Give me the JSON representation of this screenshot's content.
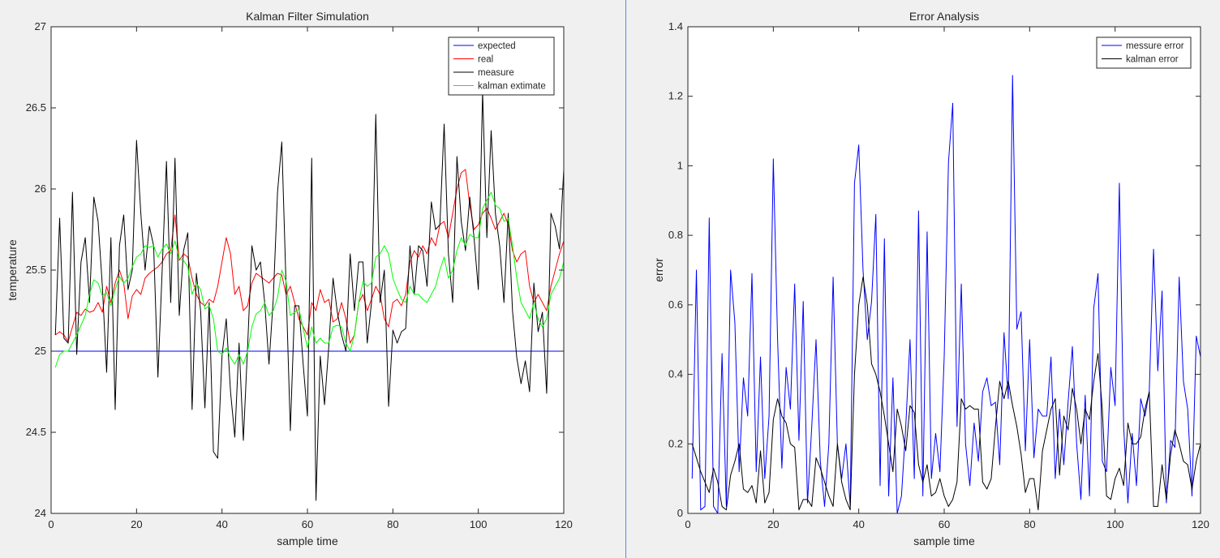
{
  "divider_color": "#4a90e2",
  "chart_data": [
    {
      "type": "line",
      "title": "Kalman Filter Simulation",
      "xlabel": "sample time",
      "ylabel": "temperature",
      "xlim": [
        0,
        120
      ],
      "ylim": [
        24,
        27
      ],
      "xticks": [
        0,
        20,
        40,
        60,
        80,
        100,
        120
      ],
      "yticks": [
        24,
        24.5,
        25,
        25.5,
        26,
        26.5,
        27
      ],
      "grid": false,
      "legend_position": "top-right",
      "series": [
        {
          "name": "expected",
          "color": "#0000ff",
          "x": [
            1,
            120
          ],
          "y": [
            25.0,
            25.0
          ]
        },
        {
          "name": "real",
          "color": "#ff0000",
          "y": [
            25.1,
            25.12,
            25.1,
            25.06,
            25.15,
            25.24,
            25.22,
            25.26,
            25.24,
            25.25,
            25.3,
            25.24,
            25.4,
            25.3,
            25.42,
            25.5,
            25.42,
            25.2,
            25.34,
            25.38,
            25.35,
            25.45,
            25.48,
            25.5,
            25.52,
            25.55,
            25.6,
            25.62,
            25.84,
            25.56,
            25.6,
            25.58,
            25.45,
            25.35,
            25.3,
            25.28,
            25.32,
            25.3,
            25.4,
            25.55,
            25.7,
            25.6,
            25.35,
            25.4,
            25.25,
            25.28,
            25.42,
            25.48,
            25.46,
            25.44,
            25.42,
            25.45,
            25.48,
            25.47,
            25.35,
            25.4,
            25.3,
            25.2,
            25.15,
            25.1,
            25.3,
            25.25,
            25.38,
            25.3,
            25.32,
            25.18,
            25.2,
            25.3,
            25.2,
            25.05,
            25.1,
            25.3,
            25.35,
            25.25,
            25.32,
            25.4,
            25.35,
            25.2,
            25.15,
            25.3,
            25.32,
            25.28,
            25.35,
            25.55,
            25.62,
            25.58,
            25.65,
            25.6,
            25.7,
            25.65,
            25.78,
            25.8,
            25.7,
            25.85,
            26.0,
            26.1,
            26.12,
            25.9,
            25.75,
            25.78,
            25.85,
            25.88,
            25.82,
            25.75,
            25.8,
            25.85,
            25.78,
            25.62,
            25.55,
            25.6,
            25.62,
            25.4,
            25.3,
            25.35,
            25.3,
            25.25,
            25.4,
            25.5,
            25.6,
            25.68
          ]
        },
        {
          "name": "measure",
          "color": "#000000",
          "y": [
            25.1,
            25.82,
            25.08,
            25.05,
            25.98,
            24.98,
            25.55,
            25.7,
            25.3,
            25.95,
            25.8,
            25.4,
            24.87,
            25.7,
            24.64,
            25.65,
            25.84,
            25.38,
            25.5,
            26.3,
            25.85,
            25.5,
            25.77,
            25.65,
            24.84,
            25.5,
            26.17,
            25.3,
            26.19,
            25.22,
            25.62,
            25.73,
            24.64,
            25.48,
            25.25,
            24.65,
            25.3,
            24.38,
            24.34,
            24.97,
            25.2,
            24.75,
            24.47,
            25.05,
            24.45,
            25.03,
            25.65,
            25.5,
            25.55,
            25.3,
            24.92,
            25.32,
            25.98,
            26.29,
            25.4,
            24.51,
            25.28,
            25.28,
            24.92,
            24.6,
            26.19,
            24.08,
            24.97,
            24.67,
            25.03,
            25.45,
            25.24,
            25.1,
            25.0,
            25.6,
            25.25,
            25.55,
            25.55,
            25.05,
            25.3,
            26.46,
            25.3,
            25.5,
            24.66,
            25.13,
            25.05,
            25.12,
            25.14,
            25.65,
            25.35,
            25.65,
            25.62,
            25.4,
            25.92,
            25.75,
            25.78,
            26.4,
            25.6,
            25.3,
            26.2,
            25.8,
            25.62,
            25.95,
            25.7,
            25.38,
            26.6,
            25.7,
            26.36,
            25.85,
            25.65,
            25.3,
            25.85,
            25.25,
            24.96,
            24.8,
            24.94,
            24.75,
            25.42,
            25.12,
            25.24,
            24.74,
            25.85,
            25.77,
            25.63,
            26.12,
            25.25
          ]
        },
        {
          "name": "kalman extimate",
          "color": "#00ff00",
          "y": [
            24.9,
            24.98,
            25.0,
            25.0,
            25.05,
            25.1,
            25.16,
            25.22,
            25.35,
            25.44,
            25.42,
            25.34,
            25.36,
            25.28,
            25.38,
            25.46,
            25.42,
            25.45,
            25.52,
            25.58,
            25.6,
            25.65,
            25.64,
            25.65,
            25.58,
            25.63,
            25.66,
            25.6,
            25.68,
            25.57,
            25.56,
            25.52,
            25.35,
            25.42,
            25.38,
            25.26,
            25.28,
            25.2,
            25.0,
            24.98,
            25.02,
            24.96,
            24.92,
            24.98,
            24.92,
            25.0,
            25.15,
            25.23,
            25.25,
            25.3,
            25.22,
            25.25,
            25.33,
            25.5,
            25.43,
            25.22,
            25.24,
            25.26,
            25.14,
            25.02,
            25.15,
            25.05,
            25.08,
            25.05,
            25.05,
            25.15,
            25.16,
            25.15,
            25.05,
            25.0,
            25.1,
            25.3,
            25.43,
            25.4,
            25.42,
            25.58,
            25.6,
            25.65,
            25.6,
            25.45,
            25.38,
            25.32,
            25.3,
            25.4,
            25.35,
            25.35,
            25.32,
            25.3,
            25.35,
            25.4,
            25.5,
            25.58,
            25.45,
            25.5,
            25.62,
            25.7,
            25.65,
            25.72,
            25.7,
            25.7,
            25.88,
            25.93,
            25.98,
            25.9,
            25.88,
            25.8,
            25.82,
            25.65,
            25.45,
            25.3,
            25.25,
            25.2,
            25.3,
            25.2,
            25.15,
            25.2,
            25.35,
            25.4,
            25.45,
            25.55,
            25.5
          ]
        }
      ]
    },
    {
      "type": "line",
      "title": "Error Analysis",
      "xlabel": "sample time",
      "ylabel": "error",
      "xlim": [
        0,
        120
      ],
      "ylim": [
        0,
        1.4
      ],
      "xticks": [
        0,
        20,
        40,
        60,
        80,
        100,
        120
      ],
      "yticks": [
        0,
        0.2,
        0.4,
        0.6,
        0.8,
        1,
        1.2,
        1.4
      ],
      "grid": false,
      "legend_position": "top-right",
      "series": [
        {
          "name": "messure error",
          "color": "#0000ff",
          "y": [
            0.1,
            0.7,
            0.01,
            0.02,
            0.85,
            0.02,
            0.0,
            0.46,
            0.02,
            0.7,
            0.55,
            0.12,
            0.39,
            0.28,
            0.69,
            0.12,
            0.45,
            0.1,
            0.28,
            1.02,
            0.5,
            0.13,
            0.42,
            0.3,
            0.66,
            0.21,
            0.61,
            0.03,
            0.25,
            0.5,
            0.15,
            0.02,
            0.2,
            0.68,
            0.2,
            0.1,
            0.2,
            0.02,
            0.95,
            1.06,
            0.7,
            0.5,
            0.61,
            0.86,
            0.08,
            0.79,
            0.05,
            0.39,
            0.0,
            0.05,
            0.25,
            0.5,
            0.1,
            0.87,
            0.05,
            0.81,
            0.1,
            0.23,
            0.12,
            0.45,
            1.01,
            1.18,
            0.25,
            0.66,
            0.2,
            0.08,
            0.26,
            0.15,
            0.35,
            0.39,
            0.31,
            0.32,
            0.14,
            0.52,
            0.33,
            1.26,
            0.53,
            0.58,
            0.18,
            0.5,
            0.16,
            0.3,
            0.28,
            0.28,
            0.45,
            0.1,
            0.3,
            0.14,
            0.32,
            0.48,
            0.2,
            0.04,
            0.34,
            0.05,
            0.59,
            0.69,
            0.15,
            0.12,
            0.42,
            0.31,
            0.95,
            0.25,
            0.03,
            0.23,
            0.08,
            0.33,
            0.28,
            0.35,
            0.76,
            0.41,
            0.64,
            0.03,
            0.21,
            0.19,
            0.68,
            0.38,
            0.3,
            0.05,
            0.51,
            0.45
          ]
        },
        {
          "name": "kalman error",
          "color": "#000000",
          "y": [
            0.2,
            0.16,
            0.12,
            0.09,
            0.06,
            0.13,
            0.09,
            0.02,
            0.01,
            0.11,
            0.15,
            0.2,
            0.07,
            0.06,
            0.08,
            0.03,
            0.18,
            0.03,
            0.06,
            0.27,
            0.33,
            0.28,
            0.26,
            0.2,
            0.19,
            0.01,
            0.04,
            0.04,
            0.02,
            0.16,
            0.13,
            0.09,
            0.05,
            0.02,
            0.2,
            0.09,
            0.04,
            0.01,
            0.4,
            0.6,
            0.68,
            0.6,
            0.43,
            0.4,
            0.35,
            0.28,
            0.2,
            0.12,
            0.3,
            0.25,
            0.18,
            0.31,
            0.29,
            0.14,
            0.09,
            0.14,
            0.05,
            0.06,
            0.1,
            0.05,
            0.02,
            0.04,
            0.09,
            0.33,
            0.3,
            0.31,
            0.3,
            0.3,
            0.09,
            0.07,
            0.1,
            0.25,
            0.38,
            0.33,
            0.38,
            0.31,
            0.25,
            0.17,
            0.06,
            0.1,
            0.1,
            0.01,
            0.18,
            0.24,
            0.3,
            0.33,
            0.11,
            0.28,
            0.24,
            0.36,
            0.3,
            0.2,
            0.3,
            0.27,
            0.38,
            0.46,
            0.3,
            0.05,
            0.04,
            0.1,
            0.13,
            0.08,
            0.26,
            0.2,
            0.2,
            0.22,
            0.3,
            0.35,
            0.02,
            0.02,
            0.14,
            0.04,
            0.17,
            0.24,
            0.2,
            0.15,
            0.14,
            0.07,
            0.15,
            0.2
          ]
        }
      ]
    }
  ]
}
